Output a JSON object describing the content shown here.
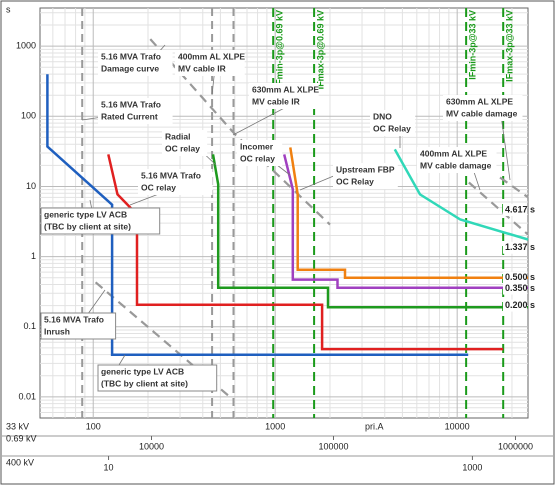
{
  "chart_data": {
    "type": "line",
    "log_x": true,
    "log_y": true,
    "grid": true,
    "y_label": "s",
    "x_label": "pri.A",
    "x_axis_name": "33 kV",
    "xlim": [
      51,
      24500
    ],
    "ylim": [
      0.005,
      3500
    ],
    "xticks": [
      100,
      1000,
      10000
    ],
    "yticks": [
      0.01,
      0.1,
      1,
      10,
      100,
      1000
    ],
    "secondary_x_axes": [
      {
        "name": "0.69 kV",
        "xlim": [
          2440,
          1171700
        ],
        "xticks": [
          10000,
          100000,
          1000000
        ]
      },
      {
        "name": "400 kV",
        "xlim": [
          4.2,
          2021
        ],
        "xticks": [
          10,
          1000
        ]
      }
    ],
    "reference_lines": [
      {
        "x": 87,
        "color": "#999999"
      },
      {
        "x": 450,
        "color": "#999999"
      },
      {
        "x": 590,
        "color": "#999999"
      }
    ],
    "fault_lines": [
      {
        "label": "IFmin-3p@0.69 kV",
        "x": 975,
        "color": "#1a9a1a"
      },
      {
        "label": "IFmax-3p@0.69 kV",
        "x": 1636,
        "color": "#1a9a1a"
      },
      {
        "label": "IFmin-3p@33 kV",
        "x": 11200,
        "color": "#1a9a1a"
      },
      {
        "label": "IFmax-3p@33 kV",
        "x": 17900,
        "color": "#1a9a1a"
      }
    ],
    "series": [
      {
        "color": "#999999",
        "dash": true,
        "x": [
          206,
          603,
          2000
        ],
        "values": [
          1259,
          55,
          2.86
        ]
      },
      {
        "color": "#999999",
        "dash": true,
        "x": [
          103,
          580
        ],
        "values": [
          0.43,
          0.0094
        ]
      },
      {
        "color": "#999999",
        "dash": true,
        "x": [
          17200,
          24500
        ],
        "values": [
          13.4,
          7
        ]
      },
      {
        "color": "#999999",
        "dash": true,
        "x": [
          11600,
          24500
        ],
        "values": [
          11.4,
          2.06
        ]
      },
      {
        "color": "#1f5fbf",
        "dash": false,
        "x": [
          56,
          56,
          127,
          127,
          11500
        ],
        "values": [
          398,
          37,
          5.5,
          0.04,
          0.04
        ]
      },
      {
        "color": "#e02020",
        "dash": false,
        "x": [
          121,
          136,
          174,
          174,
          1810,
          1810,
          17900
        ],
        "values": [
          28.6,
          7.7,
          3.98,
          0.206,
          0.206,
          0.048,
          0.048
        ]
      },
      {
        "color": "#1e9a1e",
        "dash": false,
        "x": [
          455,
          486,
          486,
          1950,
          1950,
          24500
        ],
        "values": [
          28.6,
          10.7,
          0.36,
          0.36,
          0.19,
          0.19
        ]
      },
      {
        "color": "#a040c0",
        "dash": false,
        "x": [
          1120,
          1250,
          1250,
          2200,
          2200,
          24500
        ],
        "values": [
          28.6,
          9.1,
          0.47,
          0.47,
          0.36,
          0.36
        ]
      },
      {
        "color": "#f08010",
        "dash": false,
        "x": [
          1210,
          1330,
          1330,
          2420,
          2420,
          24500
        ],
        "values": [
          36,
          7.7,
          0.65,
          0.65,
          0.5,
          0.5
        ]
      },
      {
        "color": "#30d8b8",
        "dash": false,
        "x": [
          4540,
          6250,
          10400,
          24500
        ],
        "values": [
          33.7,
          7.7,
          3.38,
          1.75
        ]
      }
    ],
    "time_labels": [
      {
        "value": 4.617,
        "label": "4.617 s"
      },
      {
        "value": 1.337,
        "label": "1.337 s"
      },
      {
        "value": 0.5,
        "label": "0.500 s"
      },
      {
        "value": 0.35,
        "label": "0.350 s"
      },
      {
        "value": 0.2,
        "label": "0.200 s"
      }
    ],
    "annotations": [
      [
        "5.16 MVA Trafo",
        "Damage curve"
      ],
      [
        "5.16 MVA Trafo",
        "Rated Current"
      ],
      [
        "400mm AL XLPE",
        "MV cable IR"
      ],
      [
        "630mm AL XLPE",
        "MV cable IR"
      ],
      [
        "Radial",
        "OC relay"
      ],
      [
        "5.16 MVA Trafo",
        "OC relay"
      ],
      [
        "Incomer",
        "OC relay"
      ],
      [
        "Upstream FBP",
        "OC Relay"
      ],
      [
        "DNO",
        "OC Relay"
      ],
      [
        "630mm AL XLPE",
        "MV cable damage"
      ],
      [
        "400mm AL XLPE",
        "MV cable damage"
      ],
      [
        "generic type LV ACB",
        "(TBC by client at site)"
      ],
      [
        "5.16 MVA Trafo",
        "Inrush"
      ],
      [
        "generic type LV ACB",
        "(TBC by client at site)"
      ]
    ]
  }
}
